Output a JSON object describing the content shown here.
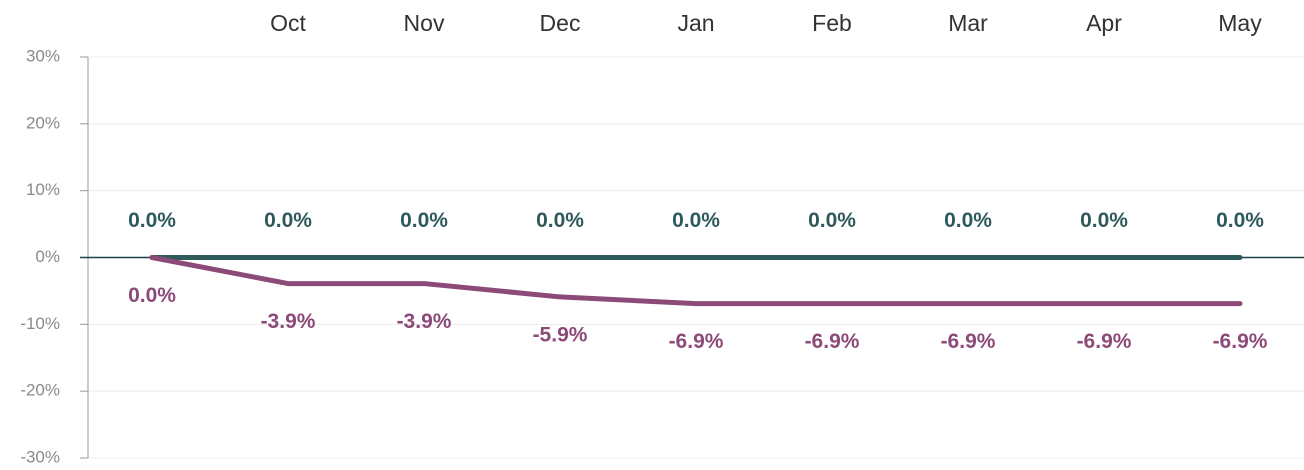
{
  "chart_data": {
    "type": "line",
    "categories": [
      null,
      "Oct",
      "Nov",
      "Dec",
      "Jan",
      "Feb",
      "Mar",
      "Apr",
      "May"
    ],
    "series": [
      {
        "color": "#2e5a5c",
        "values": [
          0,
          0,
          0,
          0,
          0,
          0,
          0,
          0,
          0
        ],
        "value_labels": [
          "0.0%",
          "0.0%",
          "0.0%",
          "0.0%",
          "0.0%",
          "0.0%",
          "0.0%",
          "0.0%",
          "0.0%"
        ]
      },
      {
        "color": "#8c4a78",
        "values": [
          0,
          -3.9,
          -3.9,
          -5.9,
          -6.9,
          -6.9,
          -6.9,
          -6.9,
          -6.9
        ],
        "value_labels": [
          "0.0%",
          "-3.9%",
          "-3.9%",
          "-5.9%",
          "-6.9%",
          "-6.9%",
          "-6.9%",
          "-6.9%",
          "-6.9%"
        ]
      }
    ],
    "ylim": [
      -30,
      30
    ],
    "yticks": [
      {
        "value": -30,
        "label": "-30%"
      },
      {
        "value": -20,
        "label": "-20%"
      },
      {
        "value": -10,
        "label": "-10%"
      },
      {
        "value": 0,
        "label": "0%"
      },
      {
        "value": 10,
        "label": "10%"
      },
      {
        "value": 20,
        "label": "20%"
      },
      {
        "value": 30,
        "label": "30%"
      }
    ],
    "grid": true
  }
}
